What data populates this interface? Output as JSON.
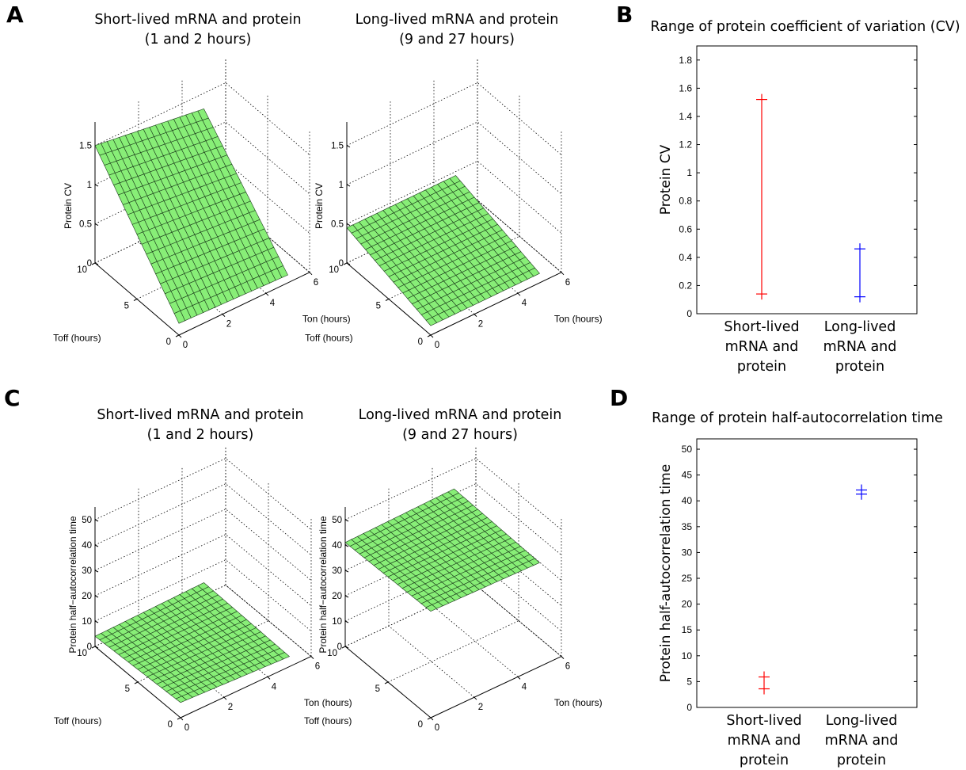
{
  "panels": {
    "A": {
      "letter": "A",
      "left": {
        "title_line1": "Short-lived mRNA and protein",
        "title_line2": "(1 and 2 hours)"
      },
      "right": {
        "title_line1": "Long-lived mRNA and protein",
        "title_line2": "(9 and 27 hours)"
      }
    },
    "B": {
      "letter": "B"
    },
    "C": {
      "letter": "C",
      "left": {
        "title_line1": "Short-lived mRNA and protein",
        "title_line2": "(1 and 2 hours)"
      },
      "right": {
        "title_line1": "Long-lived mRNA and protein",
        "title_line2": "(9 and 27 hours)"
      }
    },
    "D": {
      "letter": "D"
    }
  },
  "surface_color": "#88ee77",
  "chart_data": [
    {
      "panel": "A-left",
      "type": "surface3d",
      "x_label": "Ton (hours)",
      "y_label": "Toff (hours)",
      "z_label": "Protein CV",
      "x_ticks": [
        "0",
        "2",
        "4",
        "6"
      ],
      "y_ticks": [
        "0",
        "5",
        "10"
      ],
      "z_ticks": [
        "0",
        "0.5",
        "1",
        "1.5"
      ],
      "zlim": [
        0,
        1.8
      ],
      "corners": {
        "ton0_toff0": 0.15,
        "ton5_toff0": 0.1,
        "ton0_toff10": 1.5,
        "ton5_toff10": 1.3
      }
    },
    {
      "panel": "A-right",
      "type": "surface3d",
      "x_label": "Ton (hours)",
      "y_label": "Toff (hours)",
      "z_label": "Protein CV",
      "x_ticks": [
        "0",
        "2",
        "4",
        "6"
      ],
      "y_ticks": [
        "0",
        "5",
        "10"
      ],
      "z_ticks": [
        "0",
        "0.5",
        "1",
        "1.5"
      ],
      "zlim": [
        0,
        1.8
      ],
      "corners": {
        "ton0_toff0": 0.12,
        "ton5_toff0": 0.12,
        "ton0_toff10": 0.45,
        "ton5_toff10": 0.45
      }
    },
    {
      "panel": "B",
      "type": "range",
      "title": "Range of protein coefficient of variation (CV)",
      "ylabel": "Protein CV",
      "ylim": [
        0,
        1.9
      ],
      "yticks": [
        "0",
        "0.2",
        "0.4",
        "0.6",
        "0.8",
        "1",
        "1.2",
        "1.4",
        "1.6",
        "1.8"
      ],
      "categories": [
        "Short-lived mRNA and protein",
        "Long-lived mRNA and protein"
      ],
      "category_lines": [
        [
          "Short-lived",
          "mRNA and",
          "protein"
        ],
        [
          "Long-lived",
          "mRNA and",
          "protein"
        ]
      ],
      "series": [
        {
          "min": 0.14,
          "max": 1.52,
          "color": "#ff0000"
        },
        {
          "min": 0.12,
          "max": 0.46,
          "color": "#0000ff"
        }
      ]
    },
    {
      "panel": "C-left",
      "type": "surface3d",
      "x_label": "Ton (hours)",
      "y_label": "Toff (hours)",
      "z_label": "Protein half−autocorrelation time",
      "x_ticks": [
        "0",
        "2",
        "4",
        "6"
      ],
      "y_ticks": [
        "0",
        "5",
        "10"
      ],
      "z_ticks": [
        "0",
        "10",
        "20",
        "30",
        "40",
        "50"
      ],
      "zlim": [
        0,
        55
      ],
      "corners": {
        "ton0_toff0": 6,
        "ton5_toff0": 4,
        "ton0_toff10": 4,
        "ton5_toff10": 5
      }
    },
    {
      "panel": "C-right",
      "type": "surface3d",
      "x_label": "Ton (hours)",
      "y_label": "Toff (hours)",
      "z_label": "Protein half−autocorrelation time",
      "x_ticks": [
        "0",
        "2",
        "4",
        "6"
      ],
      "y_ticks": [
        "0",
        "5",
        "10"
      ],
      "z_ticks": [
        "0",
        "10",
        "20",
        "30",
        "40",
        "50"
      ],
      "zlim": [
        0,
        55
      ],
      "corners": {
        "ton0_toff0": 42,
        "ton5_toff0": 41,
        "ton0_toff10": 41,
        "ton5_toff10": 42
      }
    },
    {
      "panel": "D",
      "type": "range",
      "title": "Range of protein half-autocorrelation time",
      "ylabel": "Protein half-autocorrelation time",
      "ylim": [
        0,
        52
      ],
      "yticks": [
        "0",
        "5",
        "10",
        "15",
        "20",
        "25",
        "30",
        "35",
        "40",
        "45",
        "50"
      ],
      "categories": [
        "Short-lived mRNA and protein",
        "Long-lived mRNA and protein"
      ],
      "category_lines": [
        [
          "Short-lived",
          "mRNA and",
          "protein"
        ],
        [
          "Long-lived",
          "mRNA and",
          "protein"
        ]
      ],
      "series": [
        {
          "min": 3.6,
          "max": 5.9,
          "color": "#ff0000"
        },
        {
          "min": 41.3,
          "max": 42.1,
          "color": "#0000ff"
        }
      ]
    }
  ]
}
